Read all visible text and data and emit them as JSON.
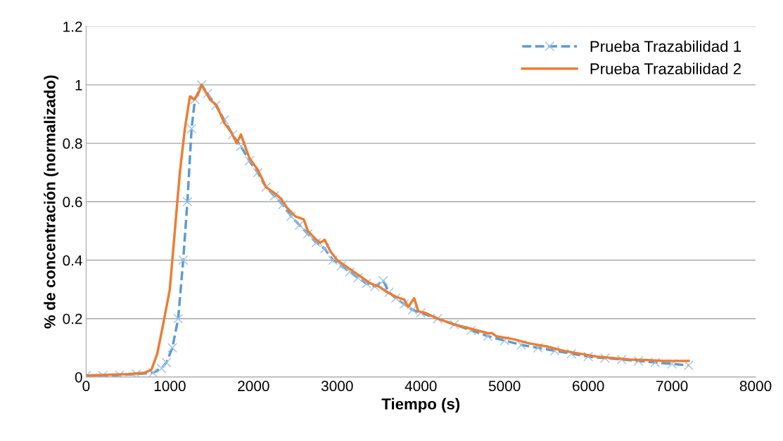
{
  "chart_data": {
    "type": "line",
    "xlabel": "Tiempo (s)",
    "ylabel": "% de concentración (normalizado)",
    "xlim": [
      0,
      8000
    ],
    "xticks": [
      0,
      1000,
      2000,
      3000,
      4000,
      5000,
      6000,
      7000,
      8000
    ],
    "ylim": [
      0,
      1.2
    ],
    "yticks": [
      0,
      {
        "value": 0.2,
        "label": "0.2"
      },
      {
        "value": 0.4,
        "label": "0.4"
      },
      {
        "value": 0.6,
        "label": "0.6"
      },
      {
        "value": 0.8,
        "label": "0.8"
      },
      1,
      {
        "value": 1.2,
        "label": "1.2"
      }
    ],
    "grid": "y",
    "legend": "top right",
    "series": [
      {
        "name": "Prueba Trazabilidad 1",
        "color": "#5b9bd5",
        "marker": "cross",
        "line_style": "dashed",
        "x": [
          0,
          200,
          400,
          600,
          800,
          900,
          960,
          1030,
          1100,
          1160,
          1210,
          1260,
          1300,
          1380,
          1450,
          1550,
          1650,
          1750,
          1850,
          1950,
          2050,
          2150,
          2250,
          2350,
          2450,
          2550,
          2650,
          2750,
          2850,
          2950,
          3050,
          3150,
          3250,
          3350,
          3450,
          3550,
          3620,
          3700,
          3800,
          3900,
          4000,
          4200,
          4400,
          4600,
          4800,
          5000,
          5200,
          5400,
          5600,
          5800,
          6000,
          6200,
          6400,
          6600,
          6800,
          7000,
          7200
        ],
        "values": [
          0.005,
          0.005,
          0.007,
          0.01,
          0.015,
          0.03,
          0.05,
          0.1,
          0.2,
          0.4,
          0.6,
          0.85,
          0.95,
          1.0,
          0.97,
          0.93,
          0.88,
          0.83,
          0.79,
          0.74,
          0.7,
          0.65,
          0.62,
          0.59,
          0.55,
          0.52,
          0.49,
          0.46,
          0.44,
          0.4,
          0.38,
          0.36,
          0.34,
          0.32,
          0.31,
          0.33,
          0.29,
          0.27,
          0.25,
          0.23,
          0.22,
          0.2,
          0.18,
          0.16,
          0.14,
          0.125,
          0.11,
          0.1,
          0.09,
          0.08,
          0.07,
          0.065,
          0.06,
          0.055,
          0.05,
          0.045,
          0.04
        ]
      },
      {
        "name": "Prueba Trazabilidad 2",
        "color": "#ed7d31",
        "marker": "none",
        "line_style": "solid",
        "x": [
          0,
          500,
          700,
          780,
          850,
          920,
          1000,
          1060,
          1120,
          1180,
          1240,
          1290,
          1340,
          1380,
          1420,
          1480,
          1560,
          1650,
          1730,
          1800,
          1850,
          1900,
          1950,
          2050,
          2150,
          2250,
          2330,
          2400,
          2500,
          2600,
          2650,
          2750,
          2800,
          2850,
          2920,
          3000,
          3100,
          3200,
          3300,
          3400,
          3500,
          3600,
          3700,
          3800,
          3850,
          3920,
          3970,
          4050,
          4200,
          4400,
          4600,
          4800,
          4850,
          4900,
          5100,
          5300,
          5500,
          5700,
          5900,
          6100,
          6300,
          6500,
          6700,
          6900,
          7200
        ],
        "values": [
          0.005,
          0.01,
          0.015,
          0.025,
          0.08,
          0.18,
          0.3,
          0.5,
          0.7,
          0.85,
          0.96,
          0.95,
          0.97,
          1.0,
          0.98,
          0.95,
          0.93,
          0.87,
          0.84,
          0.8,
          0.83,
          0.79,
          0.75,
          0.71,
          0.65,
          0.63,
          0.61,
          0.58,
          0.55,
          0.54,
          0.5,
          0.47,
          0.46,
          0.47,
          0.43,
          0.4,
          0.38,
          0.36,
          0.34,
          0.32,
          0.31,
          0.29,
          0.275,
          0.265,
          0.24,
          0.27,
          0.225,
          0.22,
          0.2,
          0.18,
          0.165,
          0.15,
          0.15,
          0.14,
          0.13,
          0.115,
          0.105,
          0.09,
          0.08,
          0.07,
          0.065,
          0.06,
          0.058,
          0.055,
          0.055
        ]
      }
    ]
  }
}
